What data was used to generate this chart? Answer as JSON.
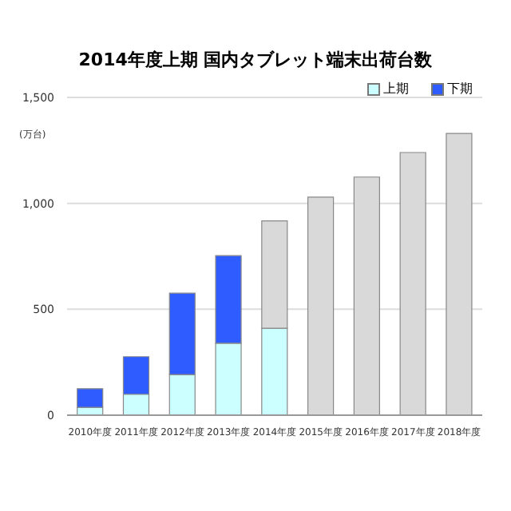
{
  "chart_data": {
    "type": "bar",
    "title": "2014年度上期 国内タブレット端末出荷台数",
    "ylabel": "(万台)",
    "stacked": true,
    "categories": [
      "2010年度",
      "2011年度",
      "2012年度",
      "2013年度",
      "2014年度",
      "2015年度",
      "2016年度",
      "2017年度",
      "2018年度"
    ],
    "series": [
      {
        "name": "上期",
        "color": "#ccffff",
        "values": [
          37,
          99,
          192,
          340,
          410,
          null,
          null,
          null,
          null
        ]
      },
      {
        "name": "下期",
        "color": "#2e5cff",
        "values": [
          88,
          177,
          384,
          413,
          null,
          null,
          null,
          null,
          null
        ]
      },
      {
        "color": "#d9d9d9",
        "values": [
          null,
          null,
          null,
          null,
          507,
          1029,
          1124,
          1240,
          1330
        ]
      }
    ],
    "ylim": [
      0,
      1500
    ],
    "yticks": [
      0,
      {
        "value": 500,
        "label": "500"
      },
      {
        "value": 1000,
        "label": "1,000"
      },
      {
        "value": 1500,
        "label": "1,500"
      }
    ],
    "grid": "y",
    "legend": "top right"
  }
}
